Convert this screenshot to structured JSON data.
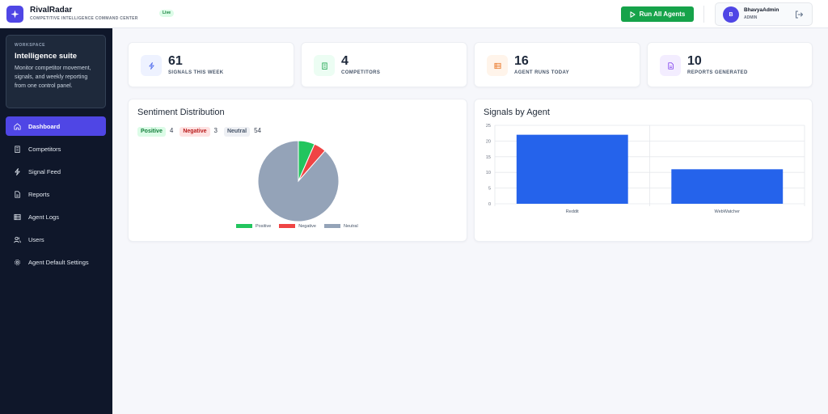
{
  "header": {
    "app_name": "RivalRadar",
    "app_subtitle": "COMPETITIVE INTELLIGENCE COMMAND CENTER",
    "live_badge": "Live",
    "run_button": "Run All Agents",
    "user": {
      "initial": "B",
      "name": "BhavyaAdmin",
      "role": "ADMIN"
    }
  },
  "sidebar": {
    "workspace": {
      "label": "WORKSPACE",
      "title": "Intelligence suite",
      "description": "Monitor competitor movement, signals, and weekly reporting from one control panel."
    },
    "items": [
      {
        "label": "Dashboard",
        "icon": "home-icon",
        "active": true
      },
      {
        "label": "Competitors",
        "icon": "building-icon",
        "active": false
      },
      {
        "label": "Signal Feed",
        "icon": "bolt-icon",
        "active": false
      },
      {
        "label": "Reports",
        "icon": "document-icon",
        "active": false
      },
      {
        "label": "Agent Logs",
        "icon": "list-icon",
        "active": false
      },
      {
        "label": "Users",
        "icon": "users-icon",
        "active": false
      },
      {
        "label": "Agent Default Settings",
        "icon": "gear-icon",
        "active": false
      }
    ]
  },
  "stats": [
    {
      "value": "61",
      "label": "SIGNALS THIS WEEK",
      "icon": "bolt-icon",
      "color": "#4f6bed"
    },
    {
      "value": "4",
      "label": "COMPETITORS",
      "icon": "building-icon",
      "color": "#16a34a"
    },
    {
      "value": "16",
      "label": "AGENT RUNS TODAY",
      "icon": "list-icon",
      "color": "#ea7a2c"
    },
    {
      "value": "10",
      "label": "REPORTS GENERATED",
      "icon": "document-icon",
      "color": "#7c3aed"
    }
  ],
  "sentiment": {
    "title": "Sentiment Distribution",
    "pills": [
      {
        "label": "Positive",
        "count": "4"
      },
      {
        "label": "Negative",
        "count": "3"
      },
      {
        "label": "Neutral",
        "count": "54"
      }
    ]
  },
  "signals_chart": {
    "title": "Signals by Agent"
  },
  "chart_data": [
    {
      "type": "pie",
      "categories": [
        "Positive",
        "Negative",
        "Neutral"
      ],
      "values": [
        4,
        3,
        54
      ],
      "colors": [
        "#22c55e",
        "#ef4444",
        "#94a3b8"
      ],
      "legend_position": "bottom"
    },
    {
      "type": "bar",
      "categories": [
        "Reddit",
        "WebWatcher"
      ],
      "values": [
        22,
        11
      ],
      "ylim": [
        0,
        25
      ],
      "yticks": [
        0,
        5,
        10,
        15,
        20,
        25
      ],
      "color": "#2563eb",
      "grid": true
    }
  ]
}
